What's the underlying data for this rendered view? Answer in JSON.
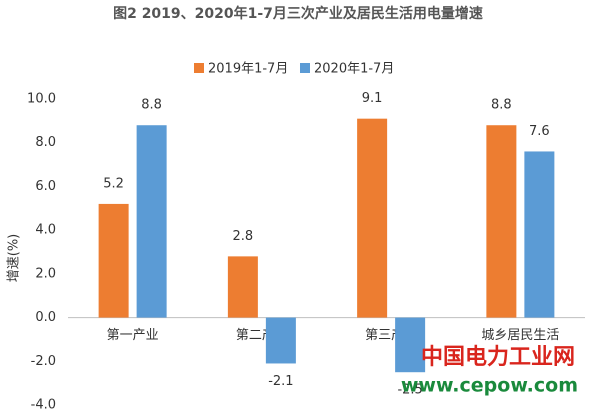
{
  "chart_data": {
    "type": "bar",
    "title": "图2 2019、2020年1-7月三次产业及居民生活用电量增速",
    "y_label": "增速(%)",
    "categories": [
      "第一产业",
      "第二产业",
      "第三产业",
      "城乡居民生活"
    ],
    "series": [
      {
        "name": "2019年1-7月",
        "color": "#ED7D31",
        "values": [
          5.2,
          2.8,
          9.1,
          8.8
        ]
      },
      {
        "name": "2020年1-7月",
        "color": "#5B9BD5",
        "values": [
          8.8,
          -2.1,
          -2.5,
          7.6
        ]
      }
    ],
    "ylim": [
      -4,
      10
    ],
    "yticks": [
      {
        "value": -4,
        "label": "-4.0"
      },
      {
        "value": -2,
        "label": "-2.0"
      },
      {
        "value": 0,
        "label": "0.0"
      },
      {
        "value": 2,
        "label": "2.0"
      },
      {
        "value": 4,
        "label": "4.0"
      },
      {
        "value": 6,
        "label": "6.0"
      },
      {
        "value": 8,
        "label": "8.0"
      },
      {
        "value": 10,
        "label": "10.0"
      }
    ],
    "grid": false,
    "legend": "top",
    "watermark": {
      "name": "中国电力工业网",
      "url": "www.cepow.com"
    }
  }
}
